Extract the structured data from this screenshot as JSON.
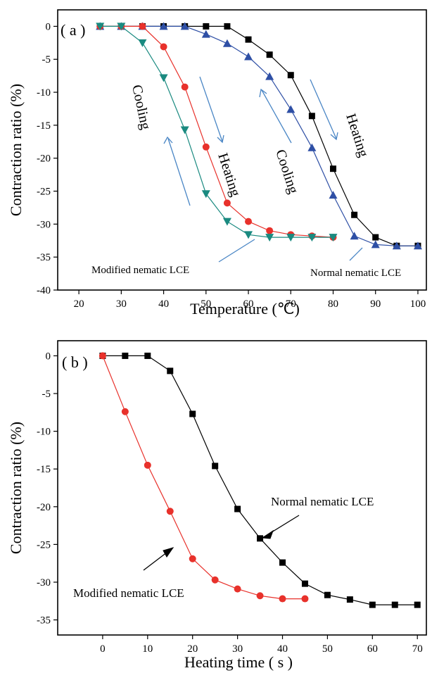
{
  "chart_data": [
    {
      "type": "line",
      "panel_label": "( a )",
      "xlabel": "Temperature (℃)",
      "ylabel": "Contraction ratio (%)",
      "xlim": [
        15,
        102
      ],
      "ylim": [
        -40,
        2.5
      ],
      "xticks": [
        20,
        30,
        40,
        50,
        60,
        70,
        80,
        90,
        100
      ],
      "yticks": [
        0,
        -5,
        -10,
        -15,
        -20,
        -25,
        -30,
        -35,
        -40
      ],
      "grid": false,
      "series": [
        {
          "marker": "square",
          "color": "#000000",
          "x": [
            25,
            30,
            35,
            40,
            45,
            50,
            55,
            60,
            65,
            70,
            75,
            80,
            85,
            90,
            95,
            100
          ],
          "y": [
            0,
            0,
            0,
            0,
            0,
            0,
            0,
            -2,
            -4.3,
            -7.4,
            -13.6,
            -21.6,
            -28.6,
            -32,
            -33.3,
            -33.3
          ]
        },
        {
          "marker": "triangle-up",
          "color": "#2e4fa5",
          "x": [
            25,
            30,
            35,
            40,
            45,
            50,
            55,
            60,
            65,
            70,
            75,
            80,
            85,
            90,
            95,
            100
          ],
          "y": [
            0,
            0,
            0,
            0,
            0,
            -1.2,
            -2.6,
            -4.6,
            -7.6,
            -12.6,
            -18.4,
            -25.6,
            -31.8,
            -33.1,
            -33.3,
            -33.3
          ]
        },
        {
          "marker": "circle",
          "color": "#e8312b",
          "x": [
            25,
            30,
            35,
            40,
            45,
            50,
            55,
            60,
            65,
            70,
            75,
            80
          ],
          "y": [
            0,
            0,
            0,
            -3.1,
            -9.2,
            -18.3,
            -26.8,
            -29.6,
            -31,
            -31.6,
            -31.8,
            -32
          ]
        },
        {
          "marker": "triangle-down",
          "color": "#1a8a80",
          "x": [
            25,
            30,
            35,
            40,
            45,
            50,
            55,
            60,
            65,
            70,
            75,
            80
          ],
          "y": [
            0,
            0,
            -2.5,
            -7.8,
            -15.7,
            -25.4,
            -29.6,
            -31.6,
            -32,
            -32,
            -32,
            -32
          ]
        }
      ],
      "annotations": {
        "cooling_left": "Cooling",
        "heating_left": "Heating",
        "cooling_right": "Cooling",
        "heating_right": "Heating",
        "modified": "Modified nematic LCE",
        "normal": "Normal nematic LCE"
      }
    },
    {
      "type": "line",
      "panel_label": "( b )",
      "xlabel": "Heating time ( s )",
      "ylabel": "Contraction ratio (%)",
      "xlim": [
        -10,
        72
      ],
      "ylim": [
        -37,
        2
      ],
      "xticks": [
        0,
        10,
        20,
        30,
        40,
        50,
        60,
        70
      ],
      "yticks": [
        0,
        -5,
        -10,
        -15,
        -20,
        -25,
        -30,
        -35
      ],
      "grid": false,
      "series": [
        {
          "marker": "square",
          "color": "#000000",
          "x": [
            0,
            5,
            10,
            15,
            20,
            25,
            30,
            35,
            40,
            45,
            50,
            55,
            60,
            65,
            70
          ],
          "y": [
            0,
            0,
            0,
            -2,
            -7.7,
            -14.6,
            -20.3,
            -24.2,
            -27.4,
            -30.2,
            -31.7,
            -32.3,
            -33,
            -33,
            -33
          ]
        },
        {
          "marker": "circle",
          "color": "#e8312b",
          "x": [
            0,
            5,
            10,
            15,
            20,
            25,
            30,
            35,
            40,
            45
          ],
          "y": [
            0,
            -7.4,
            -14.5,
            -20.6,
            -26.9,
            -29.7,
            -30.9,
            -31.8,
            -32.2,
            -32.2
          ]
        }
      ],
      "annotations": {
        "normal": "Normal nematic LCE",
        "modified": "Modified nematic LCE"
      }
    }
  ]
}
